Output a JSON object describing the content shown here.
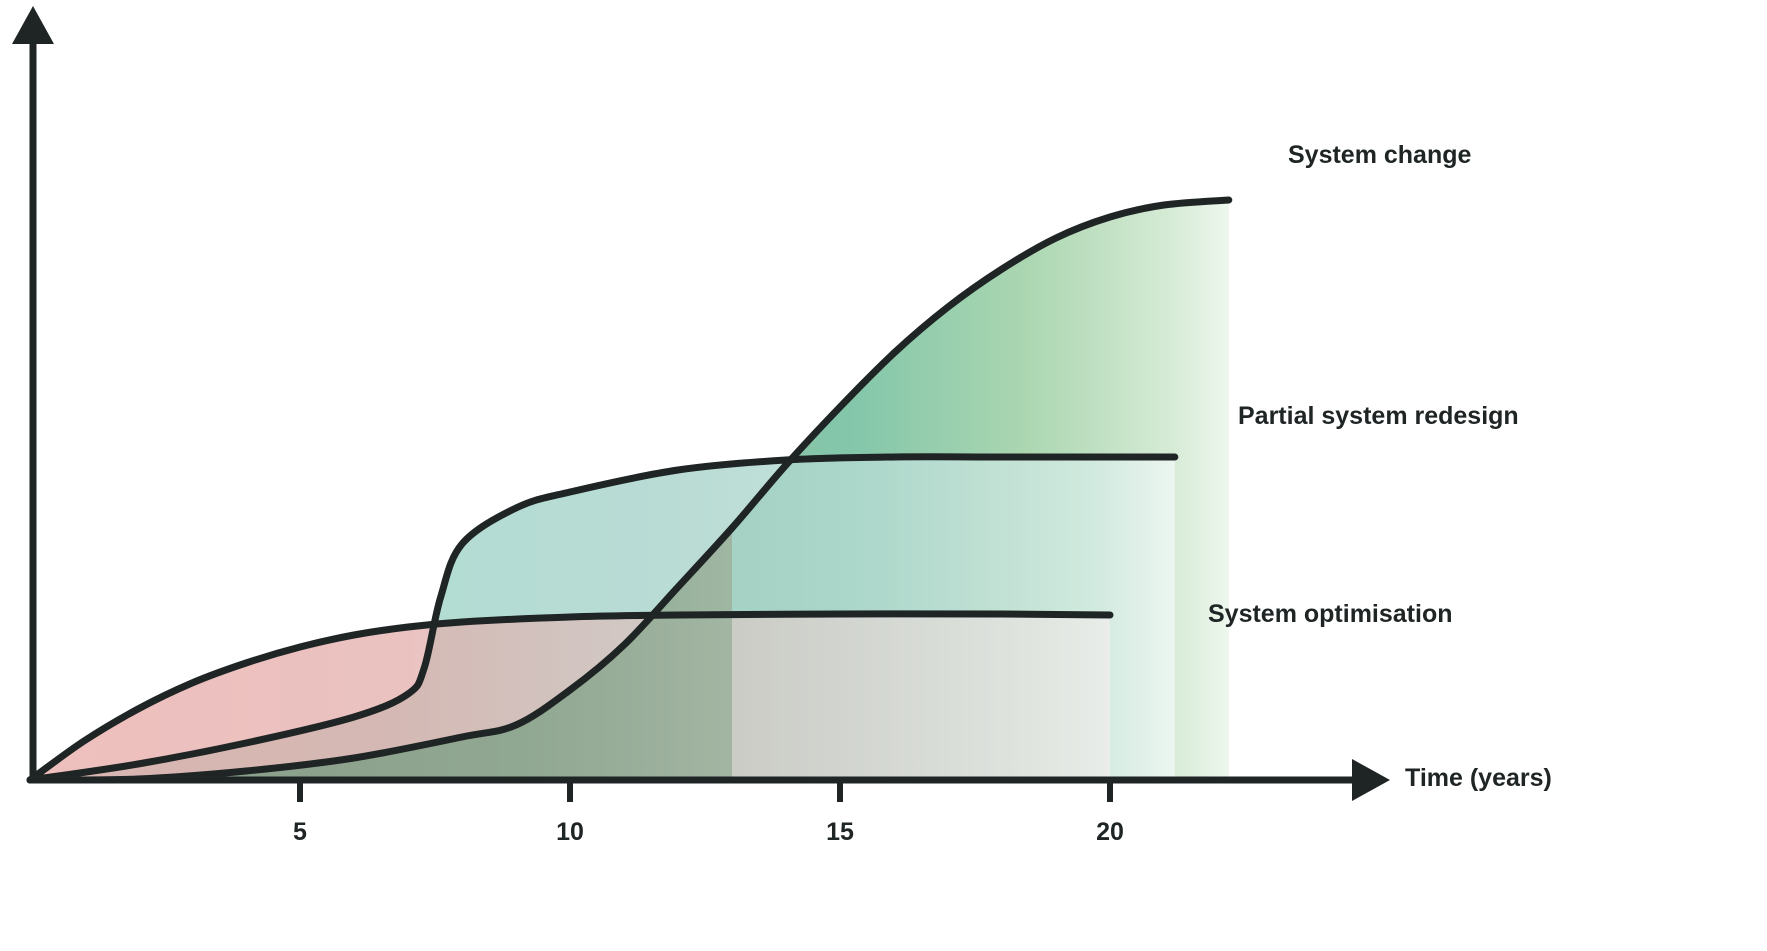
{
  "chart_data": {
    "type": "line",
    "xlabel": "Time (years)",
    "ylabel": "",
    "x_ticks": [
      5,
      10,
      15,
      20
    ],
    "xlim": [
      0,
      25
    ],
    "grid": false,
    "legend": "none",
    "series": [
      {
        "name": "System optimisation",
        "color": "#e8a6a3",
        "points": [
          [
            0,
            0
          ],
          [
            1,
            0.39
          ],
          [
            2,
            0.71
          ],
          [
            3,
            0.97
          ],
          [
            4,
            1.17
          ],
          [
            5,
            1.33
          ],
          [
            6,
            1.45
          ],
          [
            7,
            1.53
          ],
          [
            8,
            1.58
          ],
          [
            10,
            1.63
          ],
          [
            12,
            1.65
          ],
          [
            15,
            1.66
          ],
          [
            18,
            1.66
          ],
          [
            20,
            1.65
          ]
        ]
      },
      {
        "name": "Partial system redesign",
        "color": "#8ac8bc",
        "points": [
          [
            0,
            0
          ],
          [
            2,
            0.16
          ],
          [
            4,
            0.37
          ],
          [
            6,
            0.63
          ],
          [
            7,
            0.86
          ],
          [
            7.3,
            1.12
          ],
          [
            7.6,
            1.82
          ],
          [
            8,
            2.36
          ],
          [
            9,
            2.72
          ],
          [
            10,
            2.88
          ],
          [
            12,
            3.1
          ],
          [
            14,
            3.2
          ],
          [
            16,
            3.23
          ],
          [
            18,
            3.23
          ],
          [
            21.2,
            3.23
          ]
        ]
      },
      {
        "name": "System change",
        "color": "#a8d5a8",
        "points": [
          [
            0,
            0
          ],
          [
            2,
            0.01
          ],
          [
            4,
            0.09
          ],
          [
            6,
            0.22
          ],
          [
            8,
            0.43
          ],
          [
            9,
            0.55
          ],
          [
            10,
            0.9
          ],
          [
            11,
            1.35
          ],
          [
            12,
            1.93
          ],
          [
            13,
            2.52
          ],
          [
            14,
            3.15
          ],
          [
            15,
            3.73
          ],
          [
            16,
            4.27
          ],
          [
            17,
            4.73
          ],
          [
            18,
            5.11
          ],
          [
            19,
            5.42
          ],
          [
            20,
            5.63
          ],
          [
            21,
            5.75
          ],
          [
            22.2,
            5.8
          ]
        ]
      }
    ]
  }
}
